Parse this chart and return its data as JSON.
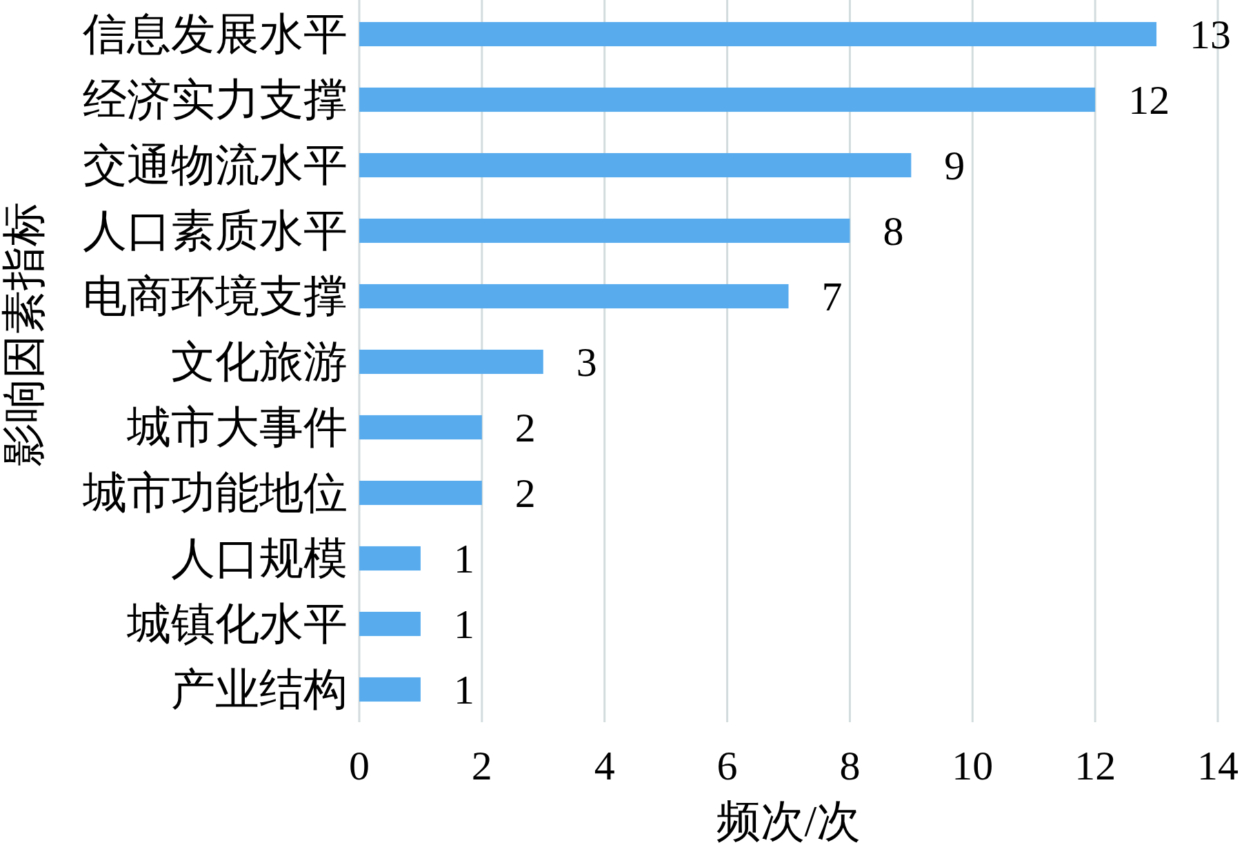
{
  "chart_data": {
    "type": "bar",
    "orientation": "horizontal",
    "categories": [
      "信息发展水平",
      "经济实力支撑",
      "交通物流水平",
      "人口素质水平",
      "电商环境支撑",
      "文化旅游",
      "城市大事件",
      "城市功能地位",
      "人口规模",
      "城镇化水平",
      "产业结构"
    ],
    "values": [
      13,
      12,
      9,
      8,
      7,
      3,
      2,
      2,
      1,
      1,
      1
    ],
    "color": "#58acee",
    "xlim": [
      0,
      14
    ],
    "xticks": [
      0,
      2,
      4,
      6,
      8,
      10,
      12,
      14
    ],
    "grid": "x",
    "data_labels": true,
    "xlabel": "频次/次",
    "ylabel": "影响因素指标"
  }
}
